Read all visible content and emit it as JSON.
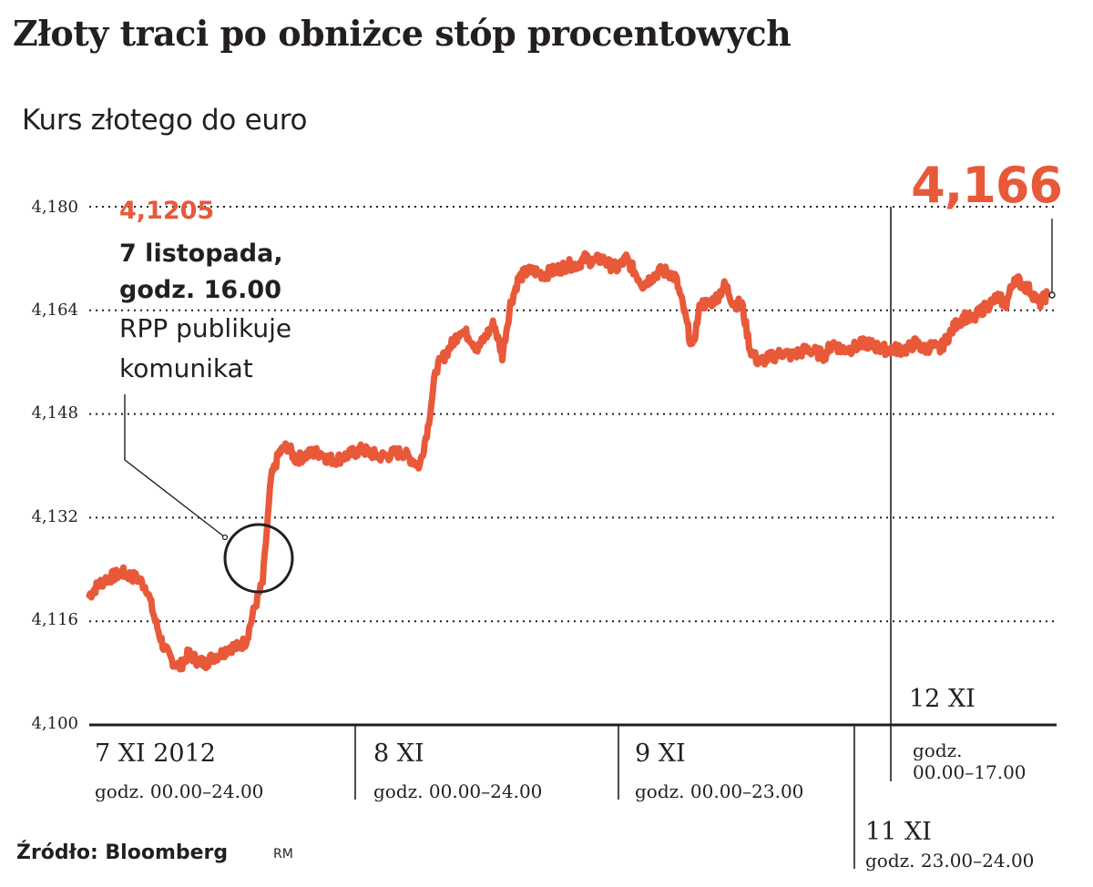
{
  "title": "Złoty traci po obniżce stóp procentowych",
  "subtitle": "Kurs złotego do euro",
  "source": "Źródło: Bloomberg",
  "credit": "RM",
  "colors": {
    "line": "#e8593a",
    "accent": "#e8593a",
    "text": "#231f20"
  },
  "annotation": {
    "value": "4,1205",
    "date": "7 listopada,",
    "hour": "godz. 16.00",
    "text_line1": "RPP publikuje",
    "text_line2": "komunikat"
  },
  "final_value": "4,166",
  "segments": [
    {
      "label": "7 XI 2012",
      "hours": "godz. 00.00–24.00"
    },
    {
      "label": "8 XI",
      "hours": "godz. 00.00–24.00"
    },
    {
      "label": "9 XI",
      "hours": "godz. 00.00–23.00"
    },
    {
      "label": "11 XI",
      "hours": "godz. 23.00–24.00"
    },
    {
      "label": "12 XI",
      "hours": "godz.",
      "hours2": "00.00–17.00"
    }
  ],
  "chart_data": {
    "type": "line",
    "title": "Złoty traci po obniżce stóp procentowych",
    "subtitle": "Kurs złotego do euro",
    "ylabel": "",
    "ylim": [
      4.1,
      4.18
    ],
    "y_ticks": [
      4.1,
      4.116,
      4.132,
      4.148,
      4.164,
      4.18
    ],
    "y_tick_labels": [
      "4,100",
      "4,116",
      "4,132",
      "4,148",
      "4,164",
      "4,180"
    ],
    "grid": "dotted horizontal",
    "x_axis": "time (7–12 XI 2012)",
    "series": [
      {
        "values": [
          4.12,
          4.1215,
          4.1225,
          4.123,
          4.1235,
          4.123,
          4.1225,
          4.121,
          4.116,
          4.112,
          4.11,
          4.109,
          4.111,
          4.11,
          4.1095,
          4.1105,
          4.111,
          4.112,
          4.112,
          4.113,
          4.118,
          4.122,
          4.138,
          4.142,
          4.143,
          4.141,
          4.1415,
          4.142,
          4.142,
          4.141,
          4.141,
          4.1415,
          4.142,
          4.1425,
          4.142,
          4.1415,
          4.1415,
          4.142,
          4.142,
          4.141,
          4.14,
          4.146,
          4.155,
          4.157,
          4.159,
          4.161,
          4.16,
          4.158,
          4.16,
          4.162,
          4.157,
          4.165,
          4.169,
          4.17,
          4.17,
          4.1695,
          4.17,
          4.1705,
          4.171,
          4.171,
          4.172,
          4.1715,
          4.172,
          4.171,
          4.1705,
          4.172,
          4.17,
          4.168,
          4.169,
          4.17,
          4.17,
          4.169,
          4.164,
          4.158,
          4.165,
          4.165,
          4.166,
          4.168,
          4.165,
          4.165,
          4.158,
          4.156,
          4.1565,
          4.157,
          4.1575,
          4.157,
          4.1575,
          4.158,
          4.1575,
          4.157,
          4.159,
          4.158,
          4.158,
          4.1585,
          4.159,
          4.1585,
          4.158,
          4.158,
          4.158,
          4.158,
          4.159,
          4.158,
          4.1585,
          4.158,
          4.16,
          4.162,
          4.163,
          4.1625,
          4.164,
          4.165,
          4.166,
          4.165,
          4.169,
          4.168,
          4.167,
          4.165,
          4.1665
        ]
      }
    ],
    "annotations": [
      {
        "x_label": "7 listopada, godz. 16.00",
        "value": 4.1205,
        "label": "4,1205",
        "note": "RPP publikuje komunikat"
      },
      {
        "position": "end",
        "value": 4.166,
        "label": "4,166"
      }
    ]
  }
}
